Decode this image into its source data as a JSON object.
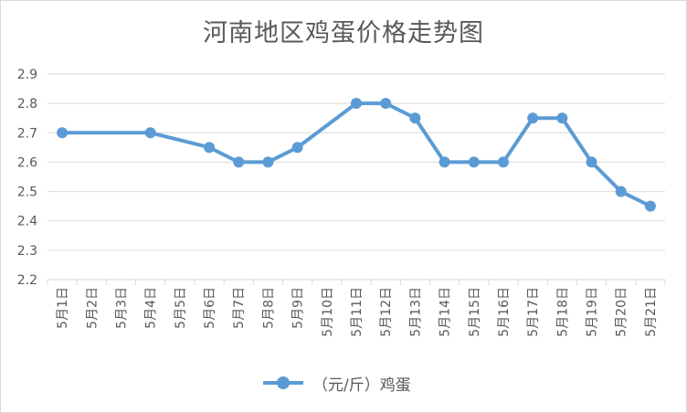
{
  "chart_data": {
    "type": "line",
    "title": "河南地区鸡蛋价格走势图",
    "categories": [
      "5月1日",
      "5月2日",
      "5月3日",
      "5月4日",
      "5月5日",
      "5月6日",
      "5月7日",
      "5月8日",
      "5月9日",
      "5月10日",
      "5月11日",
      "5月12日",
      "5月13日",
      "5月14日",
      "5月15日",
      "5月16日",
      "5月17日",
      "5月18日",
      "5月19日",
      "5月20日",
      "5月21日"
    ],
    "series": [
      {
        "name": "（元/斤）鸡蛋",
        "values": [
          2.7,
          null,
          null,
          2.7,
          null,
          2.65,
          2.6,
          2.6,
          2.65,
          null,
          2.8,
          2.8,
          2.75,
          2.6,
          2.6,
          2.6,
          2.75,
          2.75,
          2.6,
          2.5,
          2.45
        ]
      }
    ],
    "ylim": [
      2.2,
      2.9
    ],
    "yticks": [
      "2.2",
      "2.3",
      "2.4",
      "2.5",
      "2.6",
      "2.7",
      "2.8",
      "2.9"
    ],
    "grid": true,
    "legend_position": "bottom",
    "colors": {
      "series": "#5b9bd5",
      "grid": "#d9d9d9",
      "text": "#595959"
    }
  }
}
